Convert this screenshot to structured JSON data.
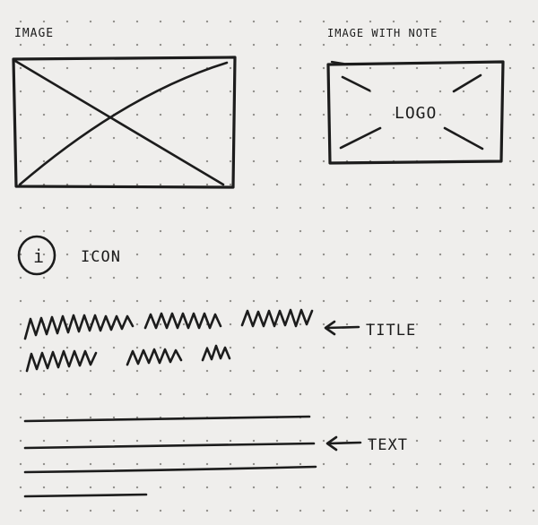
{
  "labels": {
    "image": "IMAGE",
    "image_with_note": "IMAGE WITH NOTE",
    "logo": "LOGO",
    "icon_glyph": "i",
    "icon": "ICON",
    "title": "TITLE",
    "text": "TEXT"
  },
  "icons": {
    "info": "info-circle-icon",
    "arrow": "left-arrow-icon"
  },
  "colors": {
    "paper": "#efeeec",
    "ink": "#1c1c1c",
    "dot": "#8d8b87"
  }
}
